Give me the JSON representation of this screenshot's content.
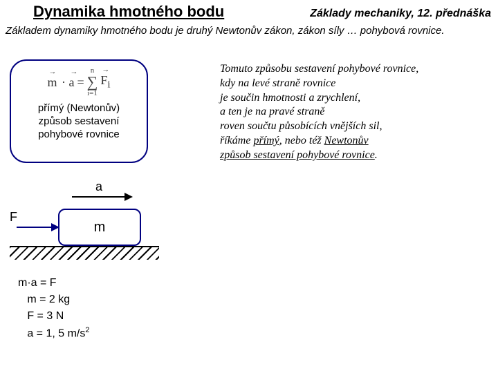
{
  "header": {
    "title": "Dynamika hmotného bodu",
    "subtitle": "Základy mechaniky, 12. přednáška"
  },
  "intro": "Základem dynamiky hmotného bodu je druhý Newtonův zákon, zákon síly … pohybová rovnice.",
  "callout": {
    "formula_left": "m · a",
    "formula_eq": "=",
    "formula_sum_top": "n",
    "formula_sum_bottom": "i=1",
    "formula_right": "F",
    "formula_sub": "i",
    "text_l1": "přímý (Newtonův)",
    "text_l2": "způsob sestavení",
    "text_l3": "pohybové rovnice"
  },
  "paragraph": {
    "l1": "Tomuto způsobu sestavení pohybové rovnice,",
    "l2": "kdy na levé straně rovnice",
    "l3": "je součin hmotnosti a zrychlení,",
    "l4": "a ten je na pravé straně",
    "l5": "roven součtu působících vnějších sil,",
    "l6a": "říkáme ",
    "l6u1": "přímý",
    "l6b": ", nebo též ",
    "l6u2": "Newtonův",
    "l7u": "způsob sestavení pohybové rovnice",
    "l7end": "."
  },
  "diagram": {
    "label_a": "a",
    "label_f": "F",
    "mass_label": "m",
    "colors": {
      "box_border": "#000080",
      "force_arrow": "#000080",
      "accel_arrow": "#000000",
      "ground": "#000000"
    }
  },
  "equations": {
    "e1": "m·a = F",
    "e2": "   m = 2 kg",
    "e3": "   F = 3 N",
    "e4_pre": "   a = 1, 5 m/s",
    "e4_sup": "2"
  }
}
